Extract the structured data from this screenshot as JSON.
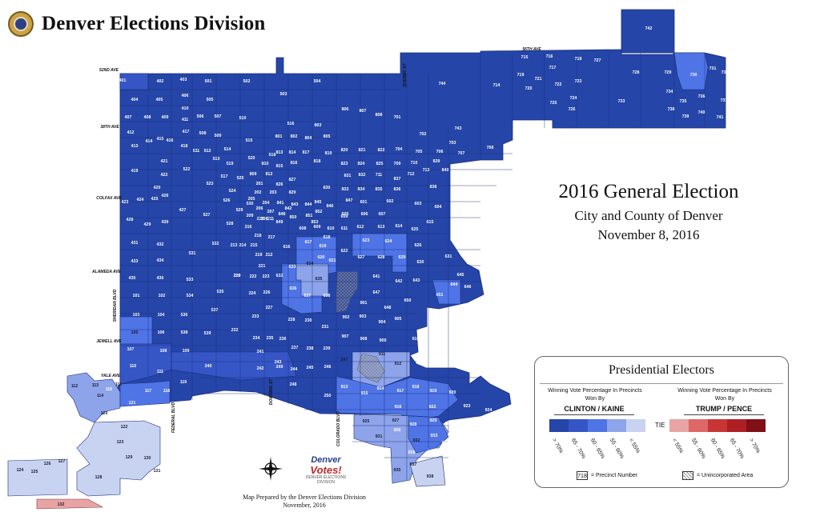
{
  "header": {
    "title": "Denver Elections Division"
  },
  "election": {
    "title": "2016 General Election",
    "subtitle": "City and County of Denver",
    "date": "November 8, 2016"
  },
  "credit": {
    "line1": "Map Prepared by the Denver Elections Division",
    "line2": "November, 2016"
  },
  "logo": {
    "line1": "Denver",
    "line2": "Votes!",
    "line3": "DENVER ELECTIONS DIVISION"
  },
  "legend": {
    "title": "Presidential Electors",
    "left_heading": "Winning Vote Percentage In Precincts Won By",
    "right_heading": "Winning Vote Percentage In Precincts Won By",
    "left_party": "CLINTON / KAINE",
    "right_party": "TRUMP / PENCE",
    "tie_label": "TIE",
    "precinct_key_value": "718",
    "precinct_key_label": "= Precinct Number",
    "unincorporated_label": "= Unincorporated Area",
    "clinton_bins": [
      {
        "label": "> 70%",
        "color": "#2545a8"
      },
      {
        "label": "65 - 70%",
        "color": "#3656c6"
      },
      {
        "label": "60 - 65%",
        "color": "#4f74e6"
      },
      {
        "label": "55 - 60%",
        "color": "#8ea4ea"
      },
      {
        "label": "< 55%",
        "color": "#c8d3f1"
      }
    ],
    "trump_bins": [
      {
        "label": "< 55%",
        "color": "#e9a3a5"
      },
      {
        "label": "55 - 60%",
        "color": "#e06767"
      },
      {
        "label": "60 - 65%",
        "color": "#c93535"
      },
      {
        "label": "65 - 70%",
        "color": "#ae1f24"
      },
      {
        "label": "> 70%",
        "color": "#7f1115"
      }
    ]
  },
  "streets": [
    {
      "label": "52ND AVE"
    },
    {
      "label": "38TH AVE"
    },
    {
      "label": "COLFAX AVE"
    },
    {
      "label": "ALAMEDA AVE"
    },
    {
      "label": "JEWELL AVE"
    },
    {
      "label": "YALE AVE"
    },
    {
      "label": "SHERIDAN BLVD"
    },
    {
      "label": "FEDERAL BLVD"
    },
    {
      "label": "DOWNING ST"
    },
    {
      "label": "COLORADO BLVD"
    },
    {
      "label": "QUEBEC ST"
    },
    {
      "label": "56TH AVE"
    }
  ],
  "precincts": [
    {
      "id": "742",
      "bin": 0
    },
    {
      "id": "715",
      "bin": 0
    },
    {
      "id": "716",
      "bin": 0
    },
    {
      "id": "718",
      "bin": 0
    },
    {
      "id": "727",
      "bin": 0
    },
    {
      "id": "728",
      "bin": 0
    },
    {
      "id": "729",
      "bin": 0
    },
    {
      "id": "730",
      "bin": 2
    },
    {
      "id": "731",
      "bin": 0
    },
    {
      "id": "732",
      "bin": 0
    },
    {
      "id": "719",
      "bin": 0
    },
    {
      "id": "717",
      "bin": 0
    },
    {
      "id": "721",
      "bin": 0
    },
    {
      "id": "723",
      "bin": 0
    },
    {
      "id": "720",
      "bin": 0
    },
    {
      "id": "722",
      "bin": 0
    },
    {
      "id": "714",
      "bin": 0
    },
    {
      "id": "724",
      "bin": 0
    },
    {
      "id": "725",
      "bin": 0
    },
    {
      "id": "726",
      "bin": 0
    },
    {
      "id": "733",
      "bin": 0
    },
    {
      "id": "734",
      "bin": 0
    },
    {
      "id": "735",
      "bin": 0
    },
    {
      "id": "736",
      "bin": 0
    },
    {
      "id": "737",
      "bin": 0
    },
    {
      "id": "738",
      "bin": 0
    },
    {
      "id": "739",
      "bin": 0
    },
    {
      "id": "740",
      "bin": 0
    },
    {
      "id": "741",
      "bin": 0
    },
    {
      "id": "744",
      "bin": 0
    },
    {
      "id": "401",
      "bin": 1
    },
    {
      "id": "402",
      "bin": 0
    },
    {
      "id": "403",
      "bin": 0
    },
    {
      "id": "501",
      "bin": 0
    },
    {
      "id": "502",
      "bin": 0
    },
    {
      "id": "504",
      "bin": 0
    },
    {
      "id": "503",
      "bin": 0
    },
    {
      "id": "404",
      "bin": 0
    },
    {
      "id": "405",
      "bin": 0
    },
    {
      "id": "406",
      "bin": 0
    },
    {
      "id": "505",
      "bin": 0
    },
    {
      "id": "410",
      "bin": 0
    },
    {
      "id": "407",
      "bin": 0
    },
    {
      "id": "408",
      "bin": 0
    },
    {
      "id": "409",
      "bin": 0
    },
    {
      "id": "411",
      "bin": 0
    },
    {
      "id": "506",
      "bin": 0
    },
    {
      "id": "507",
      "bin": 0
    },
    {
      "id": "510",
      "bin": 0
    },
    {
      "id": "806",
      "bin": 0
    },
    {
      "id": "807",
      "bin": 0
    },
    {
      "id": "808",
      "bin": 0
    },
    {
      "id": "701",
      "bin": 0
    },
    {
      "id": "702",
      "bin": 0
    },
    {
      "id": "743",
      "bin": 0
    },
    {
      "id": "412",
      "bin": 0
    },
    {
      "id": "417",
      "bin": 0
    },
    {
      "id": "508",
      "bin": 0
    },
    {
      "id": "509",
      "bin": 0
    },
    {
      "id": "516",
      "bin": 0
    },
    {
      "id": "803",
      "bin": 0
    },
    {
      "id": "703",
      "bin": 0
    },
    {
      "id": "413",
      "bin": 0
    },
    {
      "id": "414",
      "bin": 0
    },
    {
      "id": "415",
      "bin": 0
    },
    {
      "id": "416",
      "bin": 0
    },
    {
      "id": "418",
      "bin": 0
    },
    {
      "id": "511",
      "bin": 0
    },
    {
      "id": "512",
      "bin": 0
    },
    {
      "id": "514",
      "bin": 0
    },
    {
      "id": "515",
      "bin": 0
    },
    {
      "id": "801",
      "bin": 0
    },
    {
      "id": "802",
      "bin": 0
    },
    {
      "id": "804",
      "bin": 0
    },
    {
      "id": "805",
      "bin": 0
    },
    {
      "id": "813",
      "bin": 0
    },
    {
      "id": "814",
      "bin": 0
    },
    {
      "id": "817",
      "bin": 0
    },
    {
      "id": "819",
      "bin": 0
    },
    {
      "id": "820",
      "bin": 0
    },
    {
      "id": "821",
      "bin": 0
    },
    {
      "id": "822",
      "bin": 0
    },
    {
      "id": "704",
      "bin": 0
    },
    {
      "id": "705",
      "bin": 0
    },
    {
      "id": "706",
      "bin": 0
    },
    {
      "id": "707",
      "bin": 0
    },
    {
      "id": "708",
      "bin": 0
    },
    {
      "id": "419",
      "bin": 0
    },
    {
      "id": "421",
      "bin": 0
    },
    {
      "id": "422",
      "bin": 0
    },
    {
      "id": "513",
      "bin": 0
    },
    {
      "id": "519",
      "bin": 1
    },
    {
      "id": "520",
      "bin": 0
    },
    {
      "id": "522",
      "bin": 0
    },
    {
      "id": "518",
      "bin": 0
    },
    {
      "id": "810",
      "bin": 0
    },
    {
      "id": "815",
      "bin": 0
    },
    {
      "id": "816",
      "bin": 0
    },
    {
      "id": "818",
      "bin": 0
    },
    {
      "id": "823",
      "bin": 0
    },
    {
      "id": "824",
      "bin": 0
    },
    {
      "id": "825",
      "bin": 0
    },
    {
      "id": "709",
      "bin": 0
    },
    {
      "id": "710",
      "bin": 0
    },
    {
      "id": "711",
      "bin": 0
    },
    {
      "id": "712",
      "bin": 0
    },
    {
      "id": "713",
      "bin": 0
    },
    {
      "id": "839",
      "bin": 0
    },
    {
      "id": "840",
      "bin": 0
    },
    {
      "id": "517",
      "bin": 1
    },
    {
      "id": "525",
      "bin": 1
    },
    {
      "id": "809",
      "bin": 0
    },
    {
      "id": "812",
      "bin": 0
    },
    {
      "id": "827",
      "bin": 0
    },
    {
      "id": "831",
      "bin": 0
    },
    {
      "id": "832",
      "bin": 0
    },
    {
      "id": "837",
      "bin": 0
    },
    {
      "id": "838",
      "bin": 0
    },
    {
      "id": "201",
      "bin": 0
    },
    {
      "id": "826",
      "bin": 0
    },
    {
      "id": "829",
      "bin": 0
    },
    {
      "id": "830",
      "bin": 0
    },
    {
      "id": "833",
      "bin": 0
    },
    {
      "id": "834",
      "bin": 0
    },
    {
      "id": "835",
      "bin": 0
    },
    {
      "id": "836",
      "bin": 0
    },
    {
      "id": "523",
      "bin": 0
    },
    {
      "id": "524",
      "bin": 2
    },
    {
      "id": "202",
      "bin": 0
    },
    {
      "id": "203",
      "bin": 0
    },
    {
      "id": "205",
      "bin": 0
    },
    {
      "id": "420",
      "bin": 0
    },
    {
      "id": "424",
      "bin": 0
    },
    {
      "id": "425",
      "bin": 0
    },
    {
      "id": "426",
      "bin": 0
    },
    {
      "id": "423",
      "bin": 0
    },
    {
      "id": "526",
      "bin": 0
    },
    {
      "id": "530",
      "bin": 0
    },
    {
      "id": "204",
      "bin": 0
    },
    {
      "id": "841",
      "bin": 0
    },
    {
      "id": "843",
      "bin": 0
    },
    {
      "id": "844",
      "bin": 0
    },
    {
      "id": "845",
      "bin": 0
    },
    {
      "id": "846",
      "bin": 0
    },
    {
      "id": "847",
      "bin": 0
    },
    {
      "id": "601",
      "bin": 0
    },
    {
      "id": "602",
      "bin": 0
    },
    {
      "id": "603",
      "bin": 0
    },
    {
      "id": "604",
      "bin": 0
    },
    {
      "id": "842",
      "bin": 0
    },
    {
      "id": "206",
      "bin": 0
    },
    {
      "id": "207",
      "bin": 0
    },
    {
      "id": "208",
      "bin": 0
    },
    {
      "id": "209",
      "bin": 0
    },
    {
      "id": "210",
      "bin": 0
    },
    {
      "id": "211",
      "bin": 0
    },
    {
      "id": "848",
      "bin": 0
    },
    {
      "id": "849",
      "bin": 0
    },
    {
      "id": "850",
      "bin": 0
    },
    {
      "id": "851",
      "bin": 0
    },
    {
      "id": "852",
      "bin": 0
    },
    {
      "id": "527",
      "bin": 0
    },
    {
      "id": "427",
      "bin": 0
    },
    {
      "id": "428",
      "bin": 0
    },
    {
      "id": "429",
      "bin": 0
    },
    {
      "id": "430",
      "bin": 0
    },
    {
      "id": "528",
      "bin": 0
    },
    {
      "id": "529",
      "bin": 0
    },
    {
      "id": "605",
      "bin": 0
    },
    {
      "id": "606",
      "bin": 0
    },
    {
      "id": "607",
      "bin": 0
    },
    {
      "id": "659",
      "bin": 0
    },
    {
      "id": "608",
      "bin": 0
    },
    {
      "id": "609",
      "bin": 0
    },
    {
      "id": "610",
      "bin": 0
    },
    {
      "id": "611",
      "bin": 0
    },
    {
      "id": "612",
      "bin": 0
    },
    {
      "id": "613",
      "bin": 0
    },
    {
      "id": "614",
      "bin": 0
    },
    {
      "id": "615",
      "bin": 0
    },
    {
      "id": "625",
      "bin": 0
    },
    {
      "id": "853",
      "bin": 0
    },
    {
      "id": "217",
      "bin": 0
    },
    {
      "id": "218",
      "bin": 0
    },
    {
      "id": "216",
      "bin": 0
    },
    {
      "id": "618",
      "bin": 2
    },
    {
      "id": "617",
      "bin": 2
    },
    {
      "id": "623",
      "bin": 2
    },
    {
      "id": "624",
      "bin": 2
    },
    {
      "id": "626",
      "bin": 0
    },
    {
      "id": "431",
      "bin": 0
    },
    {
      "id": "432",
      "bin": 0
    },
    {
      "id": "532",
      "bin": 0
    },
    {
      "id": "213",
      "bin": 0
    },
    {
      "id": "214",
      "bin": 0
    },
    {
      "id": "215",
      "bin": 0
    },
    {
      "id": "616",
      "bin": 2
    },
    {
      "id": "619",
      "bin": 2
    },
    {
      "id": "622",
      "bin": 0
    },
    {
      "id": "531",
      "bin": 0
    },
    {
      "id": "212",
      "bin": 0
    },
    {
      "id": "219",
      "bin": 0
    },
    {
      "id": "634",
      "bin": 3
    },
    {
      "id": "620",
      "bin": 2
    },
    {
      "id": "621",
      "bin": 1
    },
    {
      "id": "627",
      "bin": 0
    },
    {
      "id": "628",
      "bin": 0
    },
    {
      "id": "629",
      "bin": 0
    },
    {
      "id": "630",
      "bin": 0
    },
    {
      "id": "631",
      "bin": 0
    },
    {
      "id": "433",
      "bin": 0
    },
    {
      "id": "434",
      "bin": 0
    },
    {
      "id": "220",
      "bin": 0
    },
    {
      "id": "221",
      "bin": 0
    },
    {
      "id": "633",
      "bin": 0
    },
    {
      "id": "635",
      "bin": 3
    },
    {
      "id": "641",
      "bin": 0
    },
    {
      "id": "642",
      "bin": 1
    },
    {
      "id": "643",
      "bin": 0
    },
    {
      "id": "435",
      "bin": 0
    },
    {
      "id": "436",
      "bin": 0
    },
    {
      "id": "533",
      "bin": 0
    },
    {
      "id": "229",
      "bin": 0
    },
    {
      "id": "222",
      "bin": 0
    },
    {
      "id": "223",
      "bin": 0
    },
    {
      "id": "632",
      "bin": 0
    },
    {
      "id": "645",
      "bin": 2
    },
    {
      "id": "644",
      "bin": 1
    },
    {
      "id": "646",
      "bin": 0
    },
    {
      "id": "636",
      "bin": 0
    },
    {
      "id": "535",
      "bin": 0
    },
    {
      "id": "101",
      "bin": 0
    },
    {
      "id": "102",
      "bin": 0
    },
    {
      "id": "534",
      "bin": 0
    },
    {
      "id": "224",
      "bin": 0
    },
    {
      "id": "226",
      "bin": 0
    },
    {
      "id": "637",
      "bin": 1
    },
    {
      "id": "638",
      "bin": 1
    },
    {
      "id": "647",
      "bin": 0
    },
    {
      "id": "651",
      "bin": 2
    },
    {
      "id": "650",
      "bin": 0
    },
    {
      "id": "901",
      "bin": 0
    },
    {
      "id": "648",
      "bin": 0
    },
    {
      "id": "227",
      "bin": 0
    },
    {
      "id": "537",
      "bin": 0
    },
    {
      "id": "103",
      "bin": 2
    },
    {
      "id": "104",
      "bin": 1
    },
    {
      "id": "536",
      "bin": 0
    },
    {
      "id": "233",
      "bin": 0
    },
    {
      "id": "902",
      "bin": 0
    },
    {
      "id": "903",
      "bin": 0
    },
    {
      "id": "228",
      "bin": 2
    },
    {
      "id": "230",
      "bin": 0
    },
    {
      "id": "904",
      "bin": 0
    },
    {
      "id": "905",
      "bin": 0
    },
    {
      "id": "105",
      "bin": 3
    },
    {
      "id": "106",
      "bin": 1
    },
    {
      "id": "538",
      "bin": 1
    },
    {
      "id": "539",
      "bin": 1
    },
    {
      "id": "232",
      "bin": 0
    },
    {
      "id": "231",
      "bin": 2
    },
    {
      "id": "240",
      "bin": 0
    },
    {
      "id": "234",
      "bin": 0
    },
    {
      "id": "235",
      "bin": 0
    },
    {
      "id": "236",
      "bin": 0
    },
    {
      "id": "907",
      "bin": 2
    },
    {
      "id": "908",
      "bin": 2
    },
    {
      "id": "909",
      "bin": 0
    },
    {
      "id": "910",
      "bin": 1
    },
    {
      "id": "107",
      "bin": 1
    },
    {
      "id": "108",
      "bin": 1
    },
    {
      "id": "109",
      "bin": 0
    },
    {
      "id": "237",
      "bin": 1
    },
    {
      "id": "238",
      "bin": 0
    },
    {
      "id": "239",
      "bin": 2
    },
    {
      "id": "241",
      "bin": 0
    },
    {
      "id": "247",
      "bin": 3
    },
    {
      "id": "911",
      "bin": 3
    },
    {
      "id": "110",
      "bin": 2
    },
    {
      "id": "249",
      "bin": 0
    },
    {
      "id": "242",
      "bin": 0
    },
    {
      "id": "243",
      "bin": 0
    },
    {
      "id": "244",
      "bin": 1
    },
    {
      "id": "245",
      "bin": 0
    },
    {
      "id": "246",
      "bin": 0
    },
    {
      "id": "912",
      "bin": 3
    },
    {
      "id": "111",
      "bin": 1
    },
    {
      "id": "119",
      "bin": 0
    },
    {
      "id": "112",
      "bin": 4
    },
    {
      "id": "113",
      "bin": 3
    },
    {
      "id": "115",
      "bin": 3
    },
    {
      "id": "116",
      "bin": 2
    },
    {
      "id": "117",
      "bin": 1
    },
    {
      "id": "118",
      "bin": 1
    },
    {
      "id": "248",
      "bin": 0
    },
    {
      "id": "913",
      "bin": 1
    },
    {
      "id": "914",
      "bin": 2
    },
    {
      "id": "918",
      "bin": 1
    },
    {
      "id": "917",
      "bin": 0
    },
    {
      "id": "919",
      "bin": 2
    },
    {
      "id": "920",
      "bin": 2
    },
    {
      "id": "921",
      "bin": 1
    },
    {
      "id": "114",
      "bin": 3
    },
    {
      "id": "120",
      "bin": 4
    },
    {
      "id": "121",
      "bin": 2
    },
    {
      "id": "250",
      "bin": 0
    },
    {
      "id": "915",
      "bin": 1
    },
    {
      "id": "916",
      "bin": 1
    },
    {
      "id": "922",
      "bin": 1
    },
    {
      "id": "923",
      "bin": 2
    },
    {
      "id": "924",
      "bin": 0
    },
    {
      "id": "925",
      "bin": 3
    },
    {
      "id": "927",
      "bin": 3
    },
    {
      "id": "928",
      "bin": 2
    },
    {
      "id": "929",
      "bin": 2
    },
    {
      "id": "930",
      "bin": 2
    },
    {
      "id": "122",
      "bin": 4
    },
    {
      "id": "926",
      "bin": 1
    },
    {
      "id": "931",
      "bin": 3
    },
    {
      "id": "932",
      "bin": 3
    },
    {
      "id": "933",
      "bin": 2
    },
    {
      "id": "934",
      "bin": 2
    },
    {
      "id": "123",
      "bin": 4
    },
    {
      "id": "935",
      "bin": 3
    },
    {
      "id": "936",
      "bin": 1
    },
    {
      "id": "937",
      "bin": 3
    },
    {
      "id": "938",
      "bin": 4
    },
    {
      "id": "124",
      "bin": 4
    },
    {
      "id": "125",
      "bin": 4
    },
    {
      "id": "126",
      "bin": 4
    },
    {
      "id": "127",
      "bin": 4
    },
    {
      "id": "128",
      "bin": 4
    },
    {
      "id": "129",
      "bin": 4
    },
    {
      "id": "130",
      "bin": 4
    },
    {
      "id": "131",
      "bin": 4
    },
    {
      "id": "132",
      "bin": 5
    }
  ]
}
